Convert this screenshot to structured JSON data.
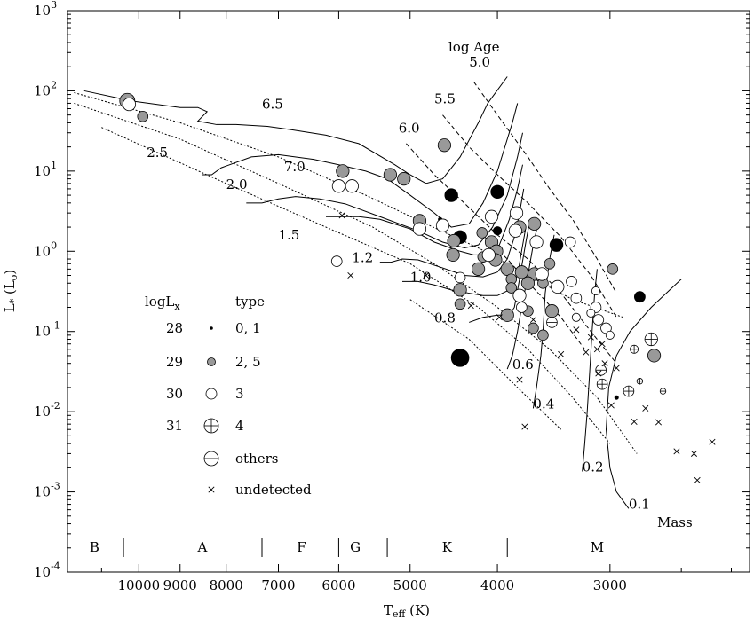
{
  "chart_data": {
    "type": "scatter",
    "xlabel": "Teff (K)",
    "ylabel": "L* (Lo)",
    "x_scale": "log",
    "y_scale": "log",
    "x_reversed": true,
    "xlim": [
      12000,
      2100
    ],
    "ylim": [
      0.0001,
      1000
    ],
    "x_ticks": [
      {
        "value": 10000,
        "label": "10000"
      },
      {
        "value": 9000,
        "label": "9000"
      },
      {
        "value": 8000,
        "label": "8000"
      },
      {
        "value": 7000,
        "label": "7000"
      },
      {
        "value": 6000,
        "label": "6000"
      },
      {
        "value": 5000,
        "label": "5000"
      },
      {
        "value": 4000,
        "label": "4000"
      },
      {
        "value": 3000,
        "label": "3000"
      }
    ],
    "y_ticks": [
      {
        "exp": -4,
        "base": "10",
        "sup": "-4"
      },
      {
        "exp": -3,
        "base": "10",
        "sup": "-3"
      },
      {
        "exp": -2,
        "base": "10",
        "sup": "-2"
      },
      {
        "exp": -1,
        "base": "10",
        "sup": "-1"
      },
      {
        "exp": 0,
        "base": "10",
        "sup": "0"
      },
      {
        "exp": 1,
        "base": "10",
        "sup": "1"
      },
      {
        "exp": 2,
        "base": "10",
        "sup": "2"
      },
      {
        "exp": 3,
        "base": "10",
        "sup": "3"
      }
    ],
    "spectral_types": [
      {
        "label": "B",
        "t": 11200
      },
      {
        "label": "A",
        "t": 8500
      },
      {
        "label": "F",
        "t": 6600
      },
      {
        "label": "G",
        "t": 5750
      },
      {
        "label": "K",
        "t": 4550
      },
      {
        "label": "M",
        "t": 3100
      }
    ],
    "spectral_dividers": [
      10400,
      7300,
      6000,
      5300,
      3900
    ],
    "age_label": "log Age",
    "mass_label": "Mass",
    "isochrone_labels": [
      {
        "text": "5.0",
        "t": 4300,
        "l": 200
      },
      {
        "text": "5.5",
        "t": 4700,
        "l": 70
      },
      {
        "text": "6.0",
        "t": 5150,
        "l": 30
      },
      {
        "text": "6.5",
        "t": 7300,
        "l": 60
      },
      {
        "text": "7.0",
        "t": 6900,
        "l": 10
      }
    ],
    "mass_labels": [
      {
        "text": "2.5",
        "t": 9800,
        "l": 15
      },
      {
        "text": "2.0",
        "t": 8000,
        "l": 6
      },
      {
        "text": "1.5",
        "t": 7000,
        "l": 1.4
      },
      {
        "text": "1.2",
        "t": 5800,
        "l": 0.73
      },
      {
        "text": "1.0",
        "t": 5000,
        "l": 0.42
      },
      {
        "text": "0.8",
        "t": 4700,
        "l": 0.13
      },
      {
        "text": "0.6",
        "t": 3850,
        "l": 0.034
      },
      {
        "text": "0.4",
        "t": 3650,
        "l": 0.011
      },
      {
        "text": "0.2",
        "t": 3220,
        "l": 0.0018
      },
      {
        "text": "0.1",
        "t": 2860,
        "l": 0.00062
      }
    ],
    "legend": {
      "header_lx": "logL",
      "header_lx_sub": "x",
      "header_type": "type",
      "rows": [
        {
          "lx": "28",
          "type": "0, 1",
          "symbol": "dot"
        },
        {
          "lx": "29",
          "type": "2, 5",
          "symbol": "filled-gray"
        },
        {
          "lx": "30",
          "type": "3",
          "symbol": "open"
        },
        {
          "lx": "31",
          "type": "4",
          "symbol": "cross-circle"
        },
        {
          "lx": "",
          "type": "others",
          "symbol": "bar-circle"
        },
        {
          "lx": "",
          "type": "undetected",
          "symbol": "x"
        }
      ]
    },
    "colors": {
      "filled": "#999999",
      "black": "#000000",
      "open": "#ffffff"
    },
    "series": [
      {
        "name": "0, 1",
        "kind": "black",
        "points": [
          {
            "t": 4500,
            "l": 5,
            "lx": 30
          },
          {
            "t": 4000,
            "l": 5.5,
            "lx": 30
          },
          {
            "t": 4400,
            "l": 1.5,
            "lx": 30
          },
          {
            "t": 4000,
            "l": 1.8,
            "lx": 29
          },
          {
            "t": 3440,
            "l": 1.2,
            "lx": 30
          },
          {
            "t": 3680,
            "l": 0.4,
            "lx": 29
          },
          {
            "t": 2780,
            "l": 0.27,
            "lx": 29.5
          },
          {
            "t": 4400,
            "l": 0.047,
            "lx": 31
          },
          {
            "t": 4630,
            "l": 2.5,
            "lx": 28
          },
          {
            "t": 2950,
            "l": 0.015,
            "lx": 28
          }
        ]
      },
      {
        "name": "2, 5",
        "kind": "gray",
        "points": [
          {
            "t": 10300,
            "l": 75,
            "lx": 30.5
          },
          {
            "t": 9900,
            "l": 48,
            "lx": 29.5
          },
          {
            "t": 5940,
            "l": 10,
            "lx": 30
          },
          {
            "t": 5260,
            "l": 9,
            "lx": 30
          },
          {
            "t": 5080,
            "l": 8,
            "lx": 30
          },
          {
            "t": 4580,
            "l": 21,
            "lx": 30
          },
          {
            "t": 4880,
            "l": 2.4,
            "lx": 30
          },
          {
            "t": 4470,
            "l": 1.35,
            "lx": 30
          },
          {
            "t": 4480,
            "l": 0.9,
            "lx": 30
          },
          {
            "t": 4160,
            "l": 1.7,
            "lx": 29.5
          },
          {
            "t": 4060,
            "l": 1.3,
            "lx": 30
          },
          {
            "t": 4010,
            "l": 1.0,
            "lx": 30
          },
          {
            "t": 4020,
            "l": 0.78,
            "lx": 30
          },
          {
            "t": 3900,
            "l": 0.6,
            "lx": 30
          },
          {
            "t": 3780,
            "l": 2.0,
            "lx": 30
          },
          {
            "t": 3640,
            "l": 2.2,
            "lx": 30
          },
          {
            "t": 3760,
            "l": 0.55,
            "lx": 30
          },
          {
            "t": 3640,
            "l": 0.52,
            "lx": 30
          },
          {
            "t": 3700,
            "l": 0.4,
            "lx": 30
          },
          {
            "t": 3560,
            "l": 0.4,
            "lx": 29.5
          },
          {
            "t": 3860,
            "l": 0.45,
            "lx": 29.5
          },
          {
            "t": 3860,
            "l": 0.35,
            "lx": 29.5
          },
          {
            "t": 3900,
            "l": 0.16,
            "lx": 30
          },
          {
            "t": 3700,
            "l": 0.18,
            "lx": 29.5
          },
          {
            "t": 3650,
            "l": 0.11,
            "lx": 29.5
          },
          {
            "t": 3500,
            "l": 0.7,
            "lx": 29.5
          },
          {
            "t": 3480,
            "l": 0.18,
            "lx": 30
          },
          {
            "t": 3560,
            "l": 0.09,
            "lx": 29.5
          },
          {
            "t": 4400,
            "l": 0.33,
            "lx": 30
          },
          {
            "t": 4400,
            "l": 0.22,
            "lx": 29.5
          },
          {
            "t": 4200,
            "l": 0.6,
            "lx": 30
          },
          {
            "t": 4150,
            "l": 0.85,
            "lx": 29.5
          },
          {
            "t": 2980,
            "l": 0.6,
            "lx": 29.5
          },
          {
            "t": 2680,
            "l": 0.05,
            "lx": 30
          }
        ]
      },
      {
        "name": "3",
        "kind": "open",
        "points": [
          {
            "t": 10250,
            "l": 68,
            "lx": 30
          },
          {
            "t": 6000,
            "l": 6.5,
            "lx": 30
          },
          {
            "t": 5800,
            "l": 6.5,
            "lx": 30
          },
          {
            "t": 6030,
            "l": 0.75,
            "lx": 29.5
          },
          {
            "t": 4880,
            "l": 1.9,
            "lx": 30
          },
          {
            "t": 4600,
            "l": 2.1,
            "lx": 30
          },
          {
            "t": 4060,
            "l": 2.7,
            "lx": 30
          },
          {
            "t": 4090,
            "l": 0.9,
            "lx": 30
          },
          {
            "t": 3810,
            "l": 3.0,
            "lx": 30
          },
          {
            "t": 3820,
            "l": 1.8,
            "lx": 30
          },
          {
            "t": 3620,
            "l": 1.3,
            "lx": 30
          },
          {
            "t": 3570,
            "l": 0.52,
            "lx": 30
          },
          {
            "t": 3320,
            "l": 1.3,
            "lx": 29.5
          },
          {
            "t": 3310,
            "l": 0.42,
            "lx": 29.5
          },
          {
            "t": 3270,
            "l": 0.26,
            "lx": 29.5
          },
          {
            "t": 3110,
            "l": 0.32,
            "lx": 29
          },
          {
            "t": 3110,
            "l": 0.2,
            "lx": 29.5
          },
          {
            "t": 3090,
            "l": 0.14,
            "lx": 29.5
          },
          {
            "t": 3030,
            "l": 0.11,
            "lx": 29.5
          },
          {
            "t": 3270,
            "l": 0.15,
            "lx": 29
          },
          {
            "t": 3150,
            "l": 0.17,
            "lx": 29
          },
          {
            "t": 3000,
            "l": 0.09,
            "lx": 29
          },
          {
            "t": 3780,
            "l": 0.28,
            "lx": 30
          },
          {
            "t": 4400,
            "l": 0.47,
            "lx": 29.5
          },
          {
            "t": 3430,
            "l": 0.36,
            "lx": 30
          },
          {
            "t": 3760,
            "l": 0.2,
            "lx": 29.5
          }
        ]
      },
      {
        "name": "4",
        "kind": "cross",
        "points": [
          {
            "t": 2700,
            "l": 0.08,
            "lx": 30
          },
          {
            "t": 2820,
            "l": 0.06,
            "lx": 29
          },
          {
            "t": 2780,
            "l": 0.024,
            "lx": 28.5
          },
          {
            "t": 2860,
            "l": 0.018,
            "lx": 29.5
          },
          {
            "t": 2620,
            "l": 0.018,
            "lx": 28.5
          },
          {
            "t": 3060,
            "l": 0.022,
            "lx": 29.5
          }
        ]
      },
      {
        "name": "others",
        "kind": "bar",
        "points": [
          {
            "t": 3070,
            "l": 0.033,
            "lx": 29.5
          },
          {
            "t": 3480,
            "l": 0.13,
            "lx": 29.5
          }
        ]
      },
      {
        "name": "undetected",
        "kind": "x",
        "points": [
          {
            "t": 5950,
            "l": 2.8
          },
          {
            "t": 5820,
            "l": 0.5
          },
          {
            "t": 4800,
            "l": 0.5
          },
          {
            "t": 4280,
            "l": 0.21
          },
          {
            "t": 3980,
            "l": 0.15
          },
          {
            "t": 3650,
            "l": 0.14
          },
          {
            "t": 3270,
            "l": 0.105
          },
          {
            "t": 3150,
            "l": 0.085
          },
          {
            "t": 3060,
            "l": 0.07
          },
          {
            "t": 3100,
            "l": 0.06
          },
          {
            "t": 3190,
            "l": 0.055
          },
          {
            "t": 3040,
            "l": 0.04
          },
          {
            "t": 2950,
            "l": 0.035
          },
          {
            "t": 3400,
            "l": 0.052
          },
          {
            "t": 3780,
            "l": 0.025
          },
          {
            "t": 3730,
            "l": 0.0065
          },
          {
            "t": 3090,
            "l": 0.03
          },
          {
            "t": 2990,
            "l": 0.012
          },
          {
            "t": 2740,
            "l": 0.011
          },
          {
            "t": 2820,
            "l": 0.0075
          },
          {
            "t": 2650,
            "l": 0.0074
          },
          {
            "t": 2530,
            "l": 0.0032
          },
          {
            "t": 2420,
            "l": 0.003
          },
          {
            "t": 2310,
            "l": 0.0042
          },
          {
            "t": 2400,
            "l": 0.0014
          }
        ]
      }
    ]
  }
}
